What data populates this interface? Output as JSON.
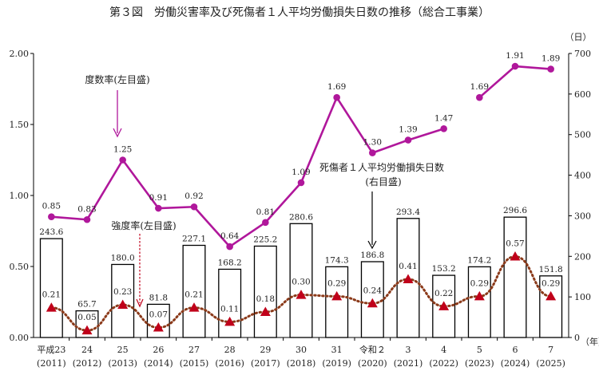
{
  "chart_data": {
    "type": "bar-line",
    "title": "第３図　労働災害率及び死傷者１人平均労働損失日数の推移（総合工事業）",
    "right_axis_unit": "（日）",
    "x_axis_unit": "（年）",
    "categories": [
      {
        "era": "平成23",
        "year": "(2011)"
      },
      {
        "era": "24",
        "year": "(2012)"
      },
      {
        "era": "25",
        "year": "(2013)"
      },
      {
        "era": "26",
        "year": "(2014)"
      },
      {
        "era": "27",
        "year": "(2015)"
      },
      {
        "era": "28",
        "year": "(2016)"
      },
      {
        "era": "29",
        "year": "(2017)"
      },
      {
        "era": "30",
        "year": "(2018)"
      },
      {
        "era": "31",
        "year": "(2019)"
      },
      {
        "era": "令和２",
        "year": "(2020)"
      },
      {
        "era": "3",
        "year": "(2021)"
      },
      {
        "era": "4",
        "year": "(2022)"
      },
      {
        "era": "5",
        "year": "(2023)"
      },
      {
        "era": "6",
        "year": "(2024)"
      },
      {
        "era": "7",
        "year": "(2025)"
      }
    ],
    "left_axis": {
      "min": 0,
      "max": 2.0,
      "ticks": [
        "0.00",
        "0.50",
        "1.00",
        "1.50",
        "2.00"
      ]
    },
    "right_axis": {
      "min": 0,
      "max": 700,
      "ticks": [
        "0",
        "100",
        "200",
        "300",
        "400",
        "500",
        "600",
        "700"
      ]
    },
    "series": [
      {
        "name": "死傷者１人平均労働損失日数（右目盛）",
        "kind": "bar",
        "axis": "right",
        "values": [
          243.6,
          65.7,
          180.0,
          81.8,
          227.1,
          168.2,
          225.2,
          280.6,
          174.3,
          186.8,
          293.4,
          153.2,
          174.2,
          296.6,
          151.8
        ],
        "labels": [
          "243.6",
          "65.7",
          "180.0",
          "81.8",
          "227.1",
          "168.2",
          "225.2",
          "280.6",
          "174.3",
          "186.8",
          "293.4",
          "153.2",
          "174.2",
          "296.6",
          "151.8"
        ]
      },
      {
        "name": "度数率（左目盛）",
        "kind": "line",
        "axis": "left",
        "color": "#b0179b",
        "segments": [
          [
            0,
            11
          ],
          [
            12,
            14
          ]
        ],
        "values": [
          0.85,
          0.83,
          1.25,
          0.91,
          0.92,
          0.64,
          0.81,
          1.09,
          1.69,
          1.3,
          1.39,
          1.47,
          1.69,
          1.91,
          1.89
        ],
        "labels": [
          "0.85",
          "0.83",
          "1.25",
          "0.91",
          "0.92",
          "0.64",
          "0.81",
          "1.09",
          "1.69",
          "1.30",
          "1.39",
          "1.47",
          "1.69",
          "1.91",
          "1.89"
        ]
      },
      {
        "name": "強度率（左目盛）",
        "kind": "dotted-line",
        "axis": "left",
        "line_color": "#8b3a1a",
        "marker_color": "#c0001a",
        "values": [
          0.21,
          0.05,
          0.23,
          0.07,
          0.21,
          0.11,
          0.18,
          0.3,
          0.29,
          0.24,
          0.41,
          0.22,
          0.29,
          0.57,
          0.29
        ],
        "labels": [
          "0.21",
          "0.05",
          "0.23",
          "0.07",
          "0.21",
          "0.11",
          "0.18",
          "0.30",
          "0.29",
          "0.24",
          "0.41",
          "0.22",
          "0.29",
          "0.57",
          "0.29"
        ]
      }
    ],
    "annotations": {
      "frequency": "度数率(左目盛)",
      "severity": "強度率(左目盛)",
      "days_line1": "死傷者１人平均労働損失日数",
      "days_line2": "(右目盛)"
    }
  }
}
